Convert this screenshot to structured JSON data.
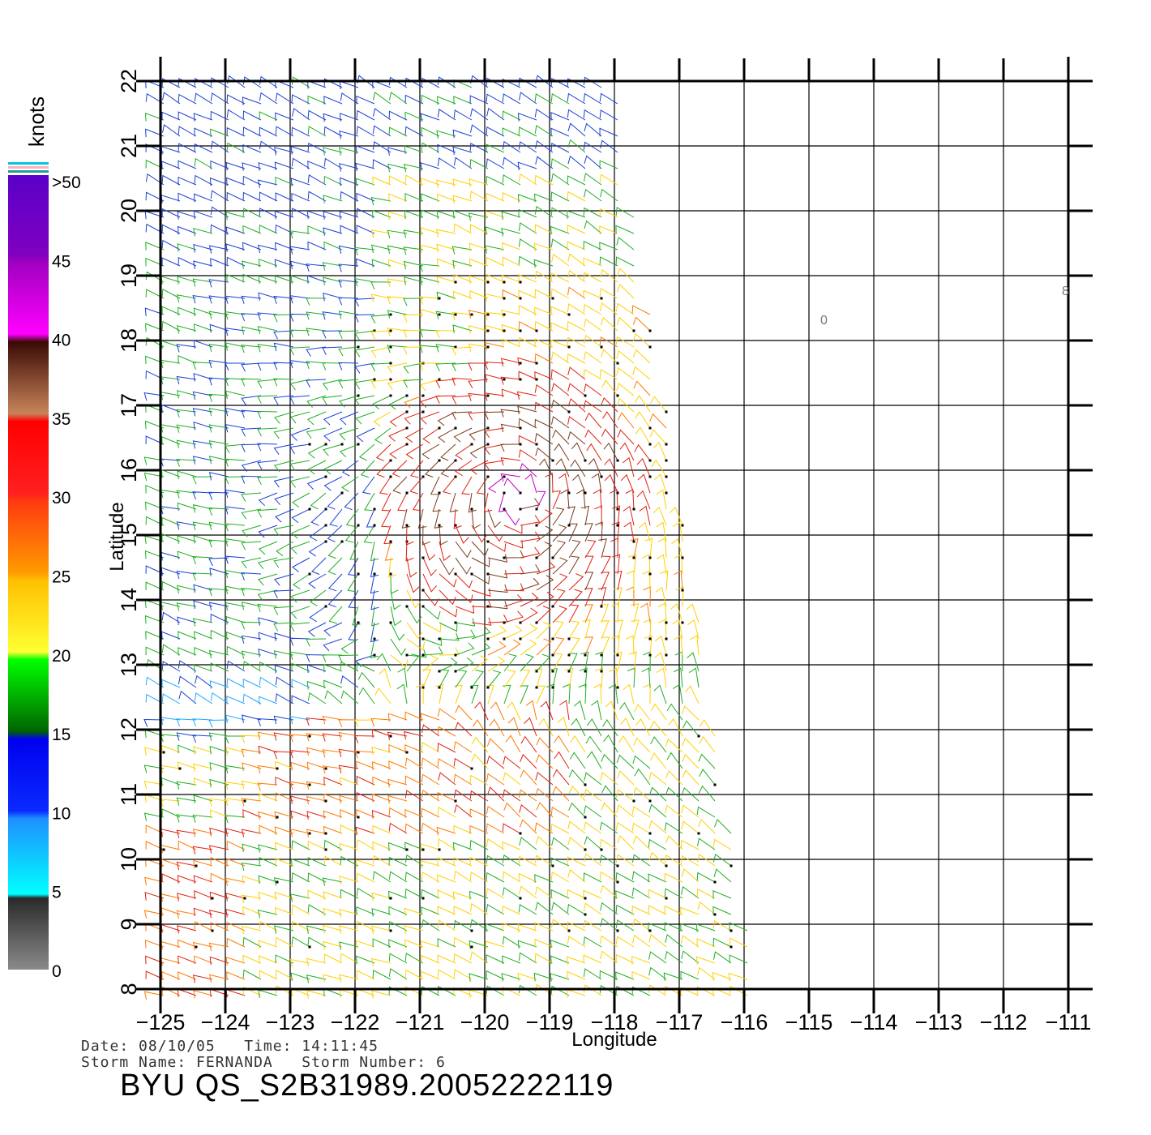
{
  "map": {
    "lon_ticks": [
      "-125",
      "-124",
      "-123",
      "-122",
      "-121",
      "-120",
      "-119",
      "-118",
      "-117",
      "-116",
      "-115",
      "-114",
      "-113",
      "-112",
      "-111"
    ],
    "lat_ticks": [
      "8",
      "9",
      "10",
      "11",
      "12",
      "13",
      "14",
      "15",
      "16",
      "17",
      "18",
      "19",
      "20",
      "21",
      "22"
    ],
    "xlabel": "Longitude",
    "ylabel": "Latitude",
    "extent": {
      "lon_min": -125,
      "lon_max": -111,
      "lat_min": 8,
      "lat_max": 22
    },
    "swath_edge": {
      "lon_top": -118,
      "lon_bottom": -115.8
    },
    "storm_center": {
      "lon": -119.5,
      "lat": 15.6
    },
    "wind_bands": [
      {
        "name": "0-5",
        "color": "#5a5a5a"
      },
      {
        "name": "5-10",
        "color": "#22aaff"
      },
      {
        "name": "10-15",
        "color": "#1a3fd6"
      },
      {
        "name": "15-20",
        "color": "#1fae1f"
      },
      {
        "name": "20-25",
        "color": "#ffd000"
      },
      {
        "name": "25-30",
        "color": "#ff7a00"
      },
      {
        "name": "30-35",
        "color": "#e02010"
      },
      {
        "name": "35-40",
        "color": "#7a3a1a"
      },
      {
        "name": ">40",
        "color": "#c000c0"
      }
    ]
  },
  "colorbar": {
    "unit": "knots",
    "labels": [
      ">50",
      "45",
      "40",
      "35",
      "30",
      "25",
      "20",
      "15",
      "10",
      "5",
      "0"
    ]
  },
  "footer": {
    "line1": "Date: 08/10/05   Time: 14:11:45",
    "line2": "Storm Name: FERNANDA   Storm Number: 6",
    "title": "BYU QS_S2B31989.20052222119"
  }
}
